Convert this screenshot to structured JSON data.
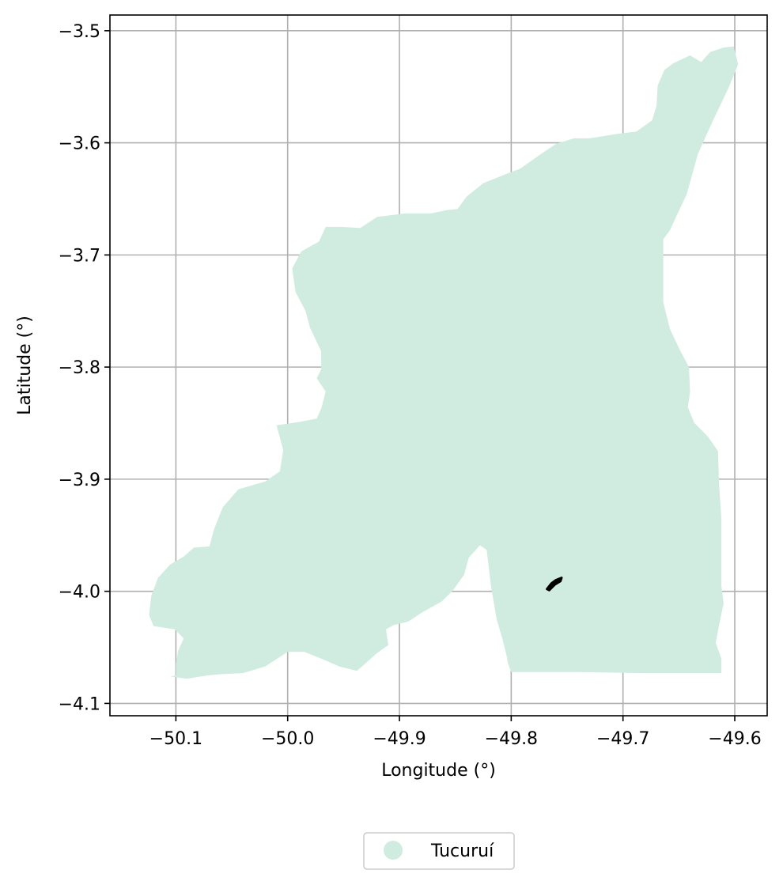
{
  "chart_data": {
    "type": "map",
    "xlabel": "Longitude (°)",
    "ylabel": "Latitude (°)",
    "xlim": [
      -50.159,
      -49.571
    ],
    "ylim": [
      -4.111,
      -3.486
    ],
    "xticks": [
      -50.1,
      -50.0,
      -49.9,
      -49.8,
      -49.7,
      -49.6
    ],
    "xtick_labels": [
      "−50.1",
      "−50.0",
      "−49.9",
      "−49.8",
      "−49.7",
      "−49.6"
    ],
    "yticks": [
      -3.5,
      -3.6,
      -3.7,
      -3.8,
      -3.9,
      -4.0,
      -4.1
    ],
    "ytick_labels": [
      "−3.5",
      "−3.6",
      "−3.7",
      "−3.8",
      "−3.9",
      "−4.0",
      "−4.1"
    ],
    "grid": true,
    "legend": {
      "placement": "bottom-center",
      "entries": [
        {
          "label": "Tucuruí",
          "color": "#d0ece0"
        }
      ]
    },
    "regions": [
      {
        "name": "Tucuruí",
        "fill": "#d0ece0",
        "polygon": [
          [
            -50.105,
            -4.076
          ],
          [
            -50.09,
            -4.078
          ],
          [
            -50.072,
            -4.075
          ],
          [
            -50.06,
            -4.074
          ],
          [
            -50.04,
            -4.073
          ],
          [
            -50.02,
            -4.067
          ],
          [
            -50.0,
            -4.054
          ],
          [
            -49.985,
            -4.054
          ],
          [
            -49.97,
            -4.06
          ],
          [
            -49.954,
            -4.067
          ],
          [
            -49.938,
            -4.071
          ],
          [
            -49.93,
            -4.064
          ],
          [
            -49.92,
            -4.055
          ],
          [
            -49.91,
            -4.048
          ],
          [
            -49.912,
            -4.034
          ],
          [
            -49.905,
            -4.03
          ],
          [
            -49.892,
            -4.027
          ],
          [
            -49.88,
            -4.019
          ],
          [
            -49.862,
            -4.009
          ],
          [
            -49.852,
            -3.999
          ],
          [
            -49.842,
            -3.985
          ],
          [
            -49.838,
            -3.97
          ],
          [
            -49.828,
            -3.959
          ],
          [
            -49.822,
            -3.963
          ],
          [
            -49.818,
            -3.996
          ],
          [
            -49.813,
            -4.025
          ],
          [
            -49.808,
            -4.042
          ],
          [
            -49.804,
            -4.058
          ],
          [
            -49.803,
            -4.064
          ],
          [
            -49.8,
            -4.072
          ],
          [
            -49.74,
            -4.072
          ],
          [
            -49.68,
            -4.073
          ],
          [
            -49.648,
            -4.073
          ],
          [
            -49.612,
            -4.073
          ],
          [
            -49.612,
            -4.06
          ],
          [
            -49.617,
            -4.046
          ],
          [
            -49.614,
            -4.03
          ],
          [
            -49.61,
            -4.011
          ],
          [
            -49.612,
            -3.995
          ],
          [
            -49.612,
            -3.965
          ],
          [
            -49.612,
            -3.935
          ],
          [
            -49.614,
            -3.905
          ],
          [
            -49.615,
            -3.875
          ],
          [
            -49.624,
            -3.862
          ],
          [
            -49.636,
            -3.85
          ],
          [
            -49.642,
            -3.836
          ],
          [
            -49.64,
            -3.822
          ],
          [
            -49.641,
            -3.8
          ],
          [
            -49.649,
            -3.785
          ],
          [
            -49.658,
            -3.766
          ],
          [
            -49.664,
            -3.742
          ],
          [
            -49.664,
            -3.715
          ],
          [
            -49.664,
            -3.686
          ],
          [
            -49.658,
            -3.678
          ],
          [
            -49.652,
            -3.665
          ],
          [
            -49.643,
            -3.646
          ],
          [
            -49.633,
            -3.61
          ],
          [
            -49.62,
            -3.581
          ],
          [
            -49.606,
            -3.552
          ],
          [
            -49.597,
            -3.53
          ],
          [
            -49.601,
            -3.514
          ],
          [
            -49.61,
            -3.515
          ],
          [
            -49.622,
            -3.519
          ],
          [
            -49.63,
            -3.528
          ],
          [
            -49.64,
            -3.522
          ],
          [
            -49.655,
            -3.529
          ],
          [
            -49.663,
            -3.535
          ],
          [
            -49.669,
            -3.549
          ],
          [
            -49.67,
            -3.567
          ],
          [
            -49.674,
            -3.58
          ],
          [
            -49.688,
            -3.59
          ],
          [
            -49.705,
            -3.592
          ],
          [
            -49.73,
            -3.596
          ],
          [
            -49.744,
            -3.596
          ],
          [
            -49.76,
            -3.601
          ],
          [
            -49.775,
            -3.611
          ],
          [
            -49.792,
            -3.623
          ],
          [
            -49.805,
            -3.628
          ],
          [
            -49.825,
            -3.636
          ],
          [
            -49.84,
            -3.648
          ],
          [
            -49.848,
            -3.659
          ],
          [
            -49.858,
            -3.66
          ],
          [
            -49.872,
            -3.663
          ],
          [
            -49.895,
            -3.663
          ],
          [
            -49.92,
            -3.666
          ],
          [
            -49.935,
            -3.676
          ],
          [
            -49.952,
            -3.675
          ],
          [
            -49.966,
            -3.675
          ],
          [
            -49.972,
            -3.688
          ],
          [
            -49.988,
            -3.697
          ],
          [
            -49.996,
            -3.712
          ],
          [
            -49.993,
            -3.733
          ],
          [
            -49.984,
            -3.75
          ],
          [
            -49.98,
            -3.765
          ],
          [
            -49.97,
            -3.786
          ],
          [
            -49.97,
            -3.802
          ],
          [
            -49.974,
            -3.81
          ],
          [
            -49.966,
            -3.822
          ],
          [
            -49.97,
            -3.837
          ],
          [
            -49.974,
            -3.846
          ],
          [
            -49.99,
            -3.849
          ],
          [
            -50.01,
            -3.852
          ],
          [
            -50.004,
            -3.874
          ],
          [
            -50.007,
            -3.893
          ],
          [
            -50.02,
            -3.902
          ],
          [
            -50.044,
            -3.909
          ],
          [
            -50.058,
            -3.925
          ],
          [
            -50.066,
            -3.945
          ],
          [
            -50.07,
            -3.96
          ],
          [
            -50.084,
            -3.961
          ],
          [
            -50.093,
            -3.969
          ],
          [
            -50.105,
            -3.976
          ],
          [
            -50.116,
            -3.988
          ],
          [
            -50.122,
            -4.004
          ],
          [
            -50.124,
            -4.021
          ],
          [
            -50.12,
            -4.031
          ],
          [
            -50.101,
            -4.034
          ],
          [
            -50.093,
            -4.042
          ],
          [
            -50.098,
            -4.053
          ],
          [
            -50.1,
            -4.065
          ],
          [
            -50.1,
            -4.075
          ]
        ]
      },
      {
        "name": "",
        "fill": "#000000",
        "polygon": [
          [
            -49.768,
            -3.998
          ],
          [
            -49.764,
            -3.993
          ],
          [
            -49.76,
            -3.99
          ],
          [
            -49.755,
            -3.988
          ],
          [
            -49.756,
            -3.991
          ],
          [
            -49.761,
            -3.994
          ],
          [
            -49.766,
            -3.999
          ]
        ]
      }
    ]
  }
}
